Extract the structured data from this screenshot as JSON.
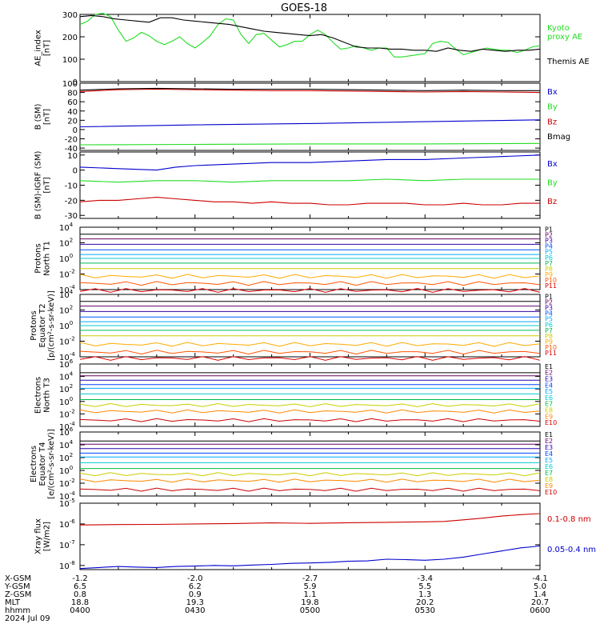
{
  "title": "GOES-18",
  "x_ticks": [
    "0400",
    "0430",
    "0500",
    "0530",
    "0600"
  ],
  "ephemeris": {
    "labels": [
      "X-GSM",
      "Y-GSM",
      "Z-GSM",
      "MLT",
      "hhmm",
      "2024 Jul 09"
    ],
    "rows": [
      [
        "-1.2",
        "-2.0",
        "-2.7",
        "-3.4",
        "-4.1"
      ],
      [
        "6.5",
        "6.2",
        "5.9",
        "5.5",
        "5.0"
      ],
      [
        "0.8",
        "0.9",
        "1.1",
        "1.3",
        "1.4"
      ],
      [
        "18.8",
        "19.3",
        "19.8",
        "20.2",
        "20.7"
      ],
      [
        "0400",
        "0430",
        "0500",
        "0530",
        "0600"
      ]
    ]
  },
  "colors": {
    "black": "#000000",
    "green": "#22dd22",
    "blue": "#0000cc",
    "red": "#cc0000",
    "p_channels": [
      "#000000",
      "#660066",
      "#3300aa",
      "#0055ff",
      "#00aaff",
      "#00cccc",
      "#00bb55",
      "#cccc00",
      "#ffaa00",
      "#ff5500",
      "#dd0000"
    ],
    "e_channels": [
      "#000000",
      "#660066",
      "#2200aa",
      "#0044ff",
      "#00aaff",
      "#00cccc",
      "#00bb44",
      "#cccc00",
      "#ff8800",
      "#cc0000"
    ]
  },
  "chart_data": [
    {
      "type": "line",
      "id": "ae",
      "ylabel": [
        "AE_index",
        "[nT]"
      ],
      "ylim": [
        0,
        300
      ],
      "yticks": [
        "0",
        "100",
        "200",
        "300"
      ],
      "x_minutes": [
        0,
        120
      ],
      "legend": [
        {
          "text": "Kyoto",
          "color": "#22dd22"
        },
        {
          "text": "proxy AE",
          "color": "#22dd22"
        },
        {
          "text": "Themis AE",
          "color": "#000000"
        }
      ],
      "series": [
        {
          "name": "Kyoto proxy AE",
          "color": "#22dd22",
          "x": [
            0,
            2,
            4,
            6,
            8,
            10,
            12,
            14,
            16,
            18,
            20,
            22,
            24,
            26,
            28,
            30,
            32,
            34,
            36,
            38,
            40,
            42,
            44,
            46,
            48,
            50,
            52,
            54,
            56,
            58,
            60,
            62,
            64,
            66,
            68,
            70,
            72,
            74,
            76,
            78,
            80,
            82,
            84,
            86,
            88,
            90,
            92,
            94,
            96,
            98,
            100,
            102,
            104,
            106,
            108,
            110,
            112,
            114,
            116,
            118,
            120
          ],
          "y": [
            255,
            270,
            300,
            305,
            290,
            230,
            180,
            195,
            220,
            205,
            180,
            165,
            180,
            200,
            170,
            150,
            175,
            205,
            255,
            280,
            275,
            210,
            170,
            210,
            215,
            185,
            155,
            165,
            180,
            180,
            210,
            230,
            210,
            175,
            145,
            150,
            160,
            150,
            140,
            150,
            150,
            110,
            110,
            115,
            120,
            125,
            170,
            180,
            175,
            145,
            120,
            130,
            140,
            150,
            145,
            140,
            140,
            130,
            140,
            155,
            160
          ]
        },
        {
          "name": "Themis AE",
          "color": "#000000",
          "x": [
            0,
            3,
            6,
            9,
            12,
            15,
            18,
            21,
            24,
            27,
            30,
            33,
            36,
            39,
            42,
            45,
            48,
            51,
            54,
            57,
            60,
            63,
            66,
            69,
            72,
            75,
            78,
            81,
            84,
            87,
            90,
            93,
            96,
            99,
            102,
            105,
            108,
            111,
            114,
            117,
            120
          ],
          "y": [
            290,
            295,
            290,
            280,
            275,
            270,
            265,
            285,
            285,
            275,
            270,
            265,
            260,
            255,
            245,
            235,
            225,
            220,
            215,
            210,
            205,
            210,
            195,
            175,
            155,
            150,
            150,
            145,
            145,
            140,
            140,
            135,
            150,
            140,
            135,
            145,
            140,
            135,
            140,
            140,
            145
          ]
        }
      ]
    },
    {
      "type": "line",
      "id": "bsm",
      "ylabel": [
        "B (SM)",
        "[nT]"
      ],
      "ylim": [
        -45,
        100
      ],
      "yticks": [
        "-40",
        "-20",
        "0",
        "20",
        "40",
        "60",
        "80",
        "100"
      ],
      "legend": [
        {
          "text": "Bx",
          "color": "#0000cc"
        },
        {
          "text": "By",
          "color": "#22dd22"
        },
        {
          "text": "Bz",
          "color": "#cc0000"
        },
        {
          "text": "Bmag",
          "color": "#000000"
        }
      ],
      "series": [
        {
          "name": "Bx",
          "color": "#0000cc",
          "x": [
            0,
            30,
            60,
            90,
            120
          ],
          "y": [
            6,
            10,
            13,
            17,
            21
          ]
        },
        {
          "name": "By",
          "color": "#22dd22",
          "x": [
            0,
            30,
            60,
            90,
            120
          ],
          "y": [
            -33,
            -32,
            -31,
            -31,
            -30
          ]
        },
        {
          "name": "Bz",
          "color": "#cc0000",
          "x": [
            0,
            10,
            20,
            30,
            40,
            50,
            60,
            70,
            80,
            90,
            100,
            110,
            120
          ],
          "y": [
            82,
            86,
            87,
            86,
            85,
            84,
            84,
            83,
            82,
            81,
            82,
            81,
            80
          ]
        },
        {
          "name": "Bmag",
          "color": "#000000",
          "x": [
            0,
            10,
            20,
            30,
            40,
            50,
            60,
            70,
            80,
            90,
            100,
            110,
            120
          ],
          "y": [
            85,
            88,
            89,
            88,
            87,
            87,
            87,
            86,
            85,
            84,
            85,
            84,
            84
          ]
        }
      ]
    },
    {
      "type": "line",
      "id": "bigrf",
      "ylabel": [
        "B (SM)-IGRF (SM)",
        "[nT]"
      ],
      "ylim": [
        -32,
        12
      ],
      "yticks": [
        "-30",
        "-20",
        "-10",
        "0",
        "10"
      ],
      "legend": [
        {
          "text": "Bx",
          "color": "#0000cc"
        },
        {
          "text": "By",
          "color": "#22dd22"
        },
        {
          "text": "Bz",
          "color": "#cc0000"
        }
      ],
      "series": [
        {
          "name": "Bx",
          "color": "#0000cc",
          "x": [
            0,
            10,
            20,
            25,
            30,
            40,
            50,
            60,
            70,
            80,
            90,
            100,
            110,
            120
          ],
          "y": [
            2,
            1,
            0,
            2,
            3,
            4,
            5,
            5,
            6,
            7,
            7,
            8,
            9,
            10
          ]
        },
        {
          "name": "By",
          "color": "#22dd22",
          "x": [
            0,
            10,
            20,
            30,
            40,
            50,
            60,
            70,
            80,
            90,
            100,
            110,
            120
          ],
          "y": [
            -7,
            -8,
            -7,
            -7,
            -8,
            -7,
            -7,
            -7,
            -6,
            -7,
            -6,
            -6,
            -6
          ]
        },
        {
          "name": "Bz",
          "color": "#cc0000",
          "x": [
            0,
            5,
            10,
            15,
            20,
            25,
            30,
            35,
            40,
            45,
            50,
            55,
            60,
            65,
            70,
            75,
            80,
            85,
            90,
            95,
            100,
            105,
            110,
            115,
            120
          ],
          "y": [
            -21,
            -20,
            -20,
            -19,
            -18,
            -19,
            -20,
            -21,
            -21,
            -22,
            -21,
            -22,
            -22,
            -23,
            -23,
            -22,
            -22,
            -22,
            -23,
            -23,
            -22,
            -23,
            -23,
            -22,
            -22
          ]
        }
      ]
    },
    {
      "type": "line",
      "id": "p_t1",
      "scale": "log",
      "ylabel": [
        "Protons",
        "North T1"
      ],
      "ylog": [
        -4,
        4
      ],
      "legend": [
        "P1",
        "P2",
        "P3",
        "P4",
        "P5",
        "P6",
        "P7",
        "P8",
        "P9",
        "P10",
        "P11"
      ],
      "series_levels": [
        3.1,
        2.5,
        1.8,
        1.1,
        0.5,
        0.0,
        -0.6,
        -1.3,
        -2.3,
        -3.2,
        -4.1
      ]
    },
    {
      "type": "line",
      "id": "p_t2",
      "scale": "log",
      "ylabel": [
        "Protons",
        "Equator T2",
        "[p/(cm²-s-sr-keV)]"
      ],
      "ylog": [
        -4,
        4
      ],
      "legend": [
        "P1",
        "P2",
        "P3",
        "P4",
        "P5",
        "P6",
        "P7",
        "P8",
        "P9",
        "P10",
        "P11"
      ],
      "series_levels": [
        3.1,
        2.5,
        1.8,
        1.1,
        0.5,
        0.0,
        -0.6,
        -1.3,
        -2.4,
        -3.4,
        -4.2
      ]
    },
    {
      "type": "line",
      "id": "e_t3",
      "scale": "log",
      "ylabel": [
        "Electrons",
        "North T3"
      ],
      "ylog": [
        -4,
        6
      ],
      "legend": [
        "E1",
        "E2",
        "E3",
        "E4",
        "E5",
        "E6",
        "E7",
        "E8",
        "E9",
        "E10"
      ],
      "series_levels": [
        4.6,
        4.1,
        3.4,
        2.7,
        2.1,
        1.2,
        0.3,
        -0.6,
        -1.6,
        -3.0
      ]
    },
    {
      "type": "line",
      "id": "e_t4",
      "scale": "log",
      "ylabel": [
        "Electrons",
        "Equator T4",
        "[e/(cm²-s-sr-keV)]"
      ],
      "ylog": [
        -4,
        6
      ],
      "legend": [
        "E1",
        "E2",
        "E3",
        "E4",
        "E5",
        "E6",
        "E7",
        "E8",
        "E9",
        "E10"
      ],
      "series_levels": [
        4.6,
        4.1,
        3.4,
        2.7,
        2.1,
        1.2,
        0.3,
        -0.6,
        -1.6,
        -3.0
      ]
    },
    {
      "type": "line",
      "id": "xray",
      "scale": "log",
      "ylabel": [
        "Xray flux",
        "[W/m2]"
      ],
      "ylog": [
        -8.2,
        -5
      ],
      "ytick_exps": [
        -8,
        -7,
        -6,
        -5
      ],
      "legend": [
        {
          "text": "0.1-0.8 nm",
          "color": "#cc0000"
        },
        {
          "text": "0.05-0.4 nm",
          "color": "#0000cc"
        }
      ],
      "series": [
        {
          "name": "0.1-0.8 nm",
          "color": "#cc0000",
          "x": [
            0,
            10,
            20,
            30,
            40,
            50,
            60,
            70,
            80,
            90,
            95,
            100,
            105,
            110,
            115,
            120
          ],
          "y": [
            -6.05,
            -6.03,
            -6.02,
            -6.0,
            -5.98,
            -5.95,
            -5.97,
            -5.94,
            -5.92,
            -5.9,
            -5.88,
            -5.8,
            -5.72,
            -5.62,
            -5.55,
            -5.5
          ]
        },
        {
          "name": "0.05-0.4 nm",
          "color": "#0000cc",
          "x": [
            0,
            5,
            10,
            15,
            20,
            25,
            30,
            35,
            40,
            45,
            50,
            55,
            60,
            65,
            70,
            75,
            80,
            85,
            90,
            95,
            100,
            105,
            110,
            115,
            118,
            120
          ],
          "y": [
            -8.15,
            -8.1,
            -8.05,
            -8.08,
            -8.1,
            -8.05,
            -8.03,
            -8.0,
            -8.02,
            -7.98,
            -7.95,
            -7.9,
            -7.88,
            -7.85,
            -7.8,
            -7.78,
            -7.7,
            -7.72,
            -7.75,
            -7.7,
            -7.6,
            -7.45,
            -7.3,
            -7.15,
            -7.1,
            -7.05
          ]
        }
      ]
    }
  ]
}
